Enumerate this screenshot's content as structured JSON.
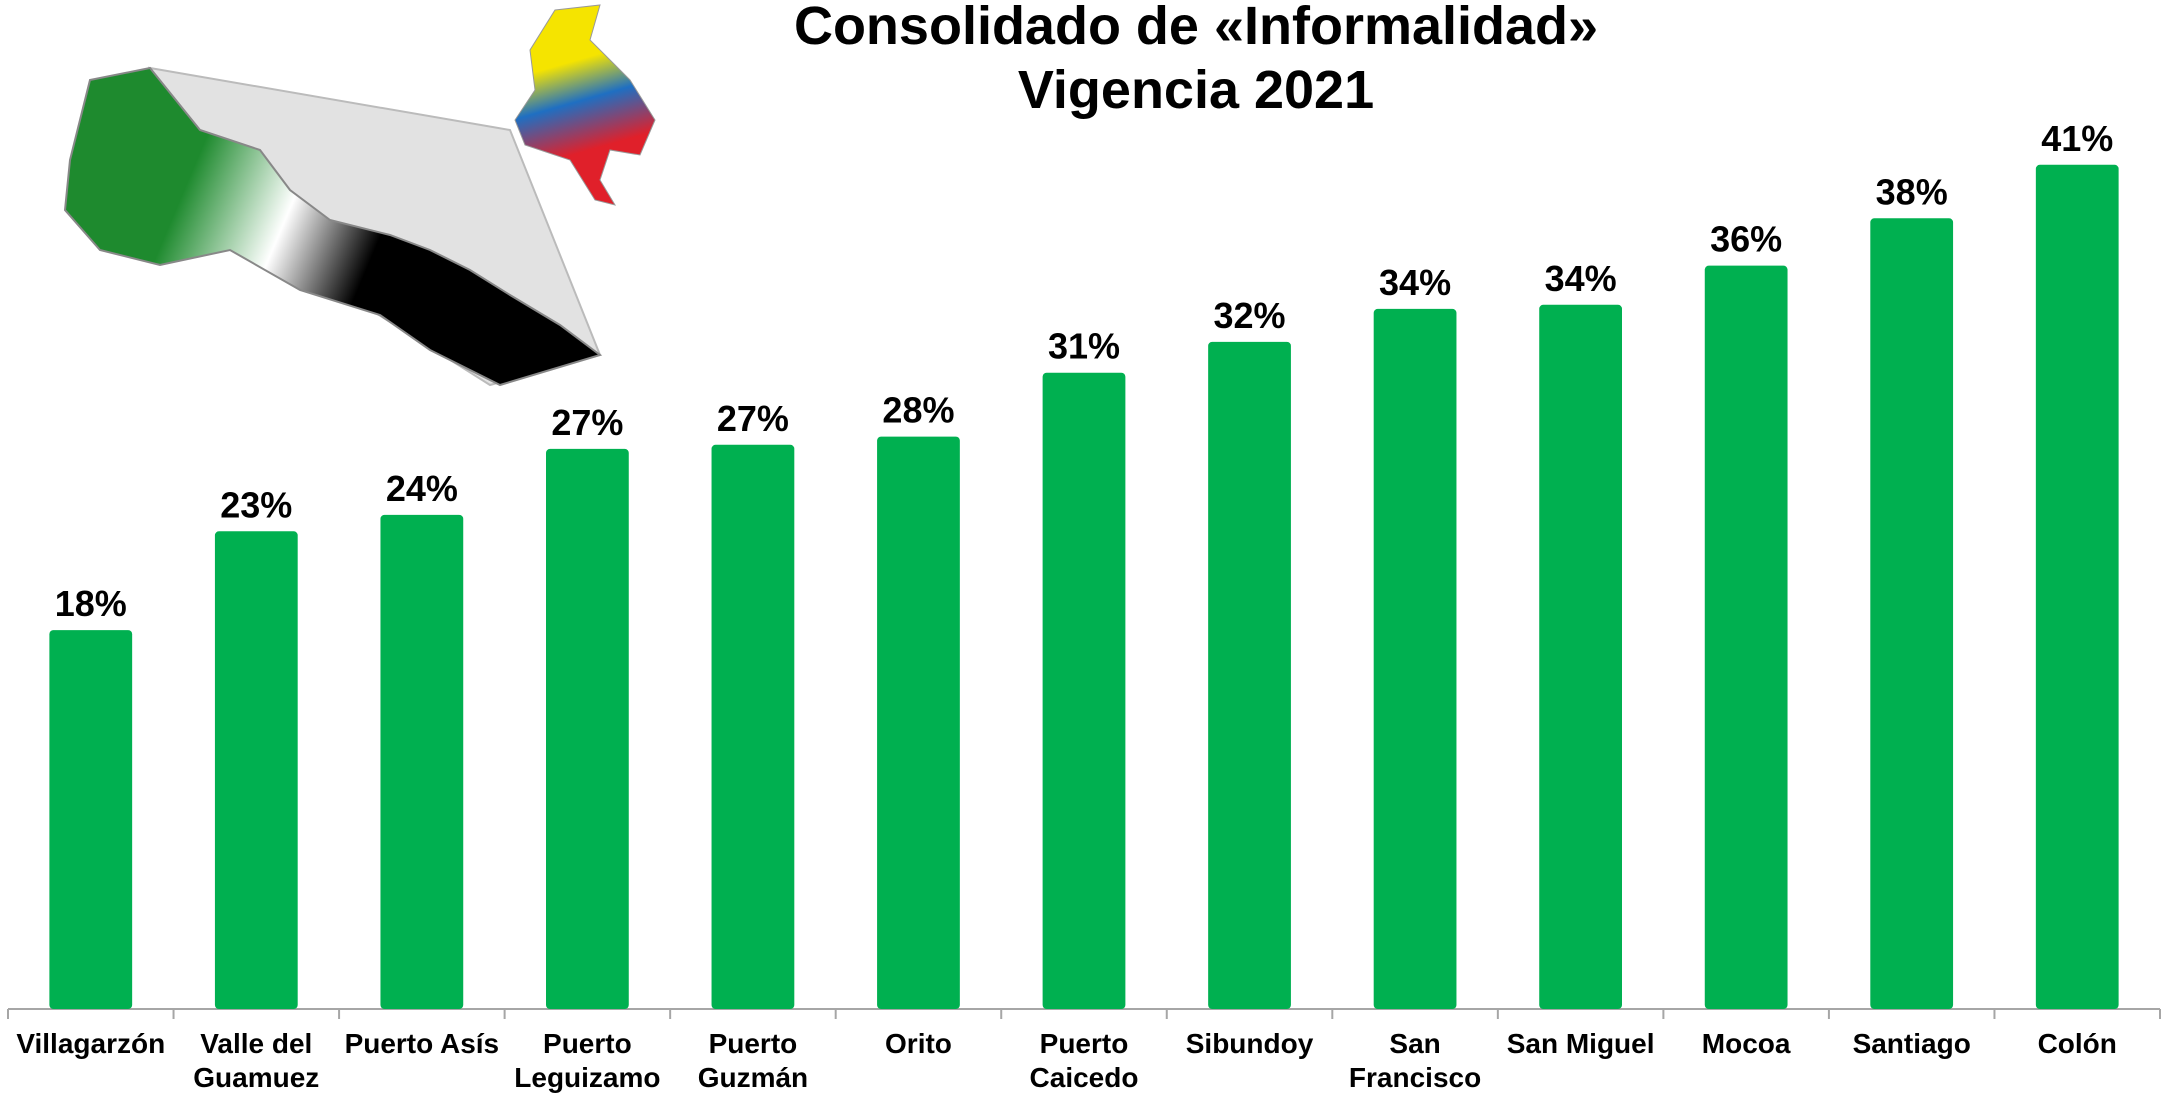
{
  "chart_data": {
    "type": "bar",
    "title": "Consolidado de «Informalidad»",
    "subtitle": "Vigencia 2021",
    "categories": [
      "Villagarzón",
      "Valle del Guamuez",
      "Puerto Asís",
      "Puerto Leguizamo",
      "Puerto Guzmán",
      "Orito",
      "Puerto Caicedo",
      "Sibundoy",
      "San Francisco",
      "San Miguel",
      "Mocoa",
      "Santiago",
      "Colón"
    ],
    "values": [
      18.4,
      23.2,
      24.0,
      27.2,
      27.4,
      27.8,
      30.9,
      32.4,
      34.0,
      34.2,
      36.1,
      38.4,
      41.0
    ],
    "value_labels": [
      "18%",
      "23%",
      "24%",
      "27%",
      "27%",
      "28%",
      "31%",
      "32%",
      "34%",
      "34%",
      "36%",
      "38%",
      "41%"
    ],
    "color": "#00b050",
    "ylim": [
      0,
      44
    ]
  }
}
